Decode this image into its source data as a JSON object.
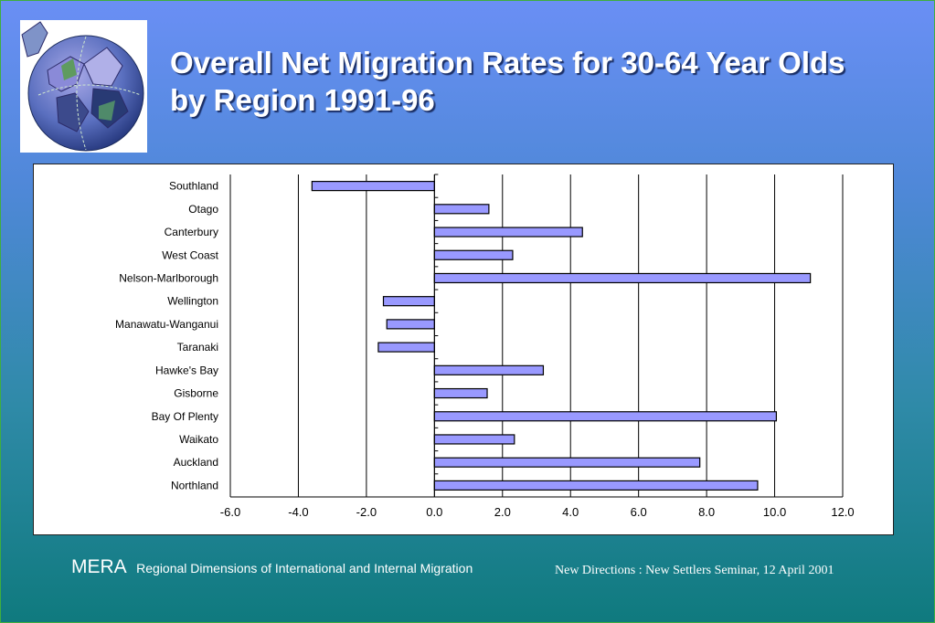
{
  "title": "Overall Net Migration Rates for 30-64 Year Olds by Region 1991-96",
  "footer": {
    "brand": "MERA",
    "subtitle": "Regional Dimensions of International and Internal Migration",
    "event": "New Directions : New Settlers Seminar, 12 April 2001"
  },
  "colors": {
    "bar_fill": "#9999ff",
    "bar_stroke": "#000000",
    "background_top": "#6a8ff5",
    "background_bottom": "#0f7a7e"
  },
  "chart_data": {
    "type": "bar",
    "orientation": "horizontal",
    "categories": [
      "Southland",
      "Otago",
      "Canterbury",
      "West Coast",
      "Nelson-Marlborough",
      "Wellington",
      "Manawatu-Wanganui",
      "Taranaki",
      "Hawke's Bay",
      "Gisborne",
      "Bay Of Plenty",
      "Waikato",
      "Auckland",
      "Northland"
    ],
    "values": [
      -3.6,
      1.6,
      4.35,
      2.3,
      11.05,
      -1.5,
      -1.4,
      -1.65,
      3.2,
      1.55,
      10.05,
      2.35,
      7.8,
      9.5
    ],
    "xlim": [
      -6,
      12
    ],
    "xticks": [
      "-6.0",
      "-4.0",
      "-2.0",
      "0.0",
      "2.0",
      "4.0",
      "6.0",
      "8.0",
      "10.0",
      "12.0"
    ],
    "grid": true,
    "title": "",
    "xlabel": "",
    "ylabel": ""
  }
}
